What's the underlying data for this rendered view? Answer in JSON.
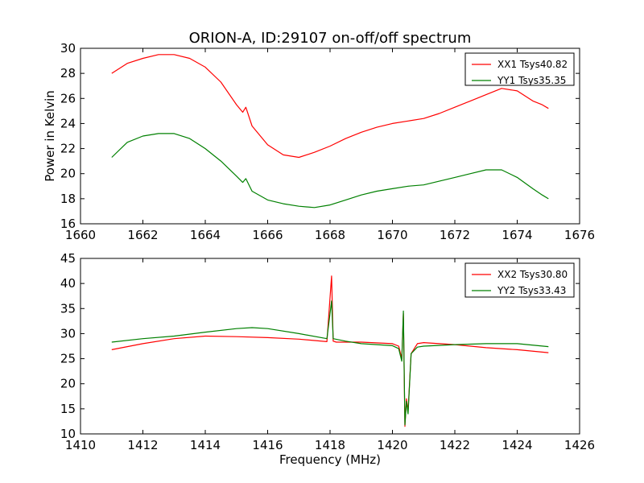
{
  "chart_data": [
    {
      "type": "line",
      "title": "ORION-A, ID:29107 on-off/off spectrum",
      "xlabel": "",
      "ylabel": "Power in Kelvin",
      "xlim": [
        1660,
        1676
      ],
      "ylim": [
        16,
        30
      ],
      "xticks": [
        1660,
        1662,
        1664,
        1666,
        1668,
        1670,
        1672,
        1674,
        1676
      ],
      "yticks": [
        16,
        18,
        20,
        22,
        24,
        26,
        28,
        30
      ],
      "grid": false,
      "legend": "top-right",
      "series": [
        {
          "name": "XX1 Tsys40.82",
          "color": "#ff0000",
          "x": [
            1661.0,
            1661.5,
            1662.0,
            1662.5,
            1663.0,
            1663.5,
            1664.0,
            1664.5,
            1665.0,
            1665.2,
            1665.3,
            1665.5,
            1666.0,
            1666.5,
            1667.0,
            1667.5,
            1668.0,
            1668.5,
            1669.0,
            1669.5,
            1670.0,
            1670.5,
            1671.0,
            1671.5,
            1672.0,
            1672.5,
            1673.0,
            1673.5,
            1674.0,
            1674.5,
            1674.8,
            1675.0
          ],
          "y": [
            28.0,
            28.8,
            29.2,
            29.5,
            29.5,
            29.2,
            28.5,
            27.3,
            25.5,
            24.9,
            25.3,
            23.8,
            22.3,
            21.5,
            21.3,
            21.7,
            22.2,
            22.8,
            23.3,
            23.7,
            24.0,
            24.2,
            24.4,
            24.8,
            25.3,
            25.8,
            26.3,
            26.8,
            26.6,
            25.8,
            25.5,
            25.2
          ]
        },
        {
          "name": "YY1 Tsys35.35",
          "color": "#008000",
          "x": [
            1661.0,
            1661.5,
            1662.0,
            1662.5,
            1663.0,
            1663.5,
            1664.0,
            1664.5,
            1665.0,
            1665.2,
            1665.3,
            1665.5,
            1666.0,
            1666.5,
            1667.0,
            1667.5,
            1668.0,
            1668.5,
            1669.0,
            1669.5,
            1670.0,
            1670.5,
            1671.0,
            1671.5,
            1672.0,
            1672.5,
            1673.0,
            1673.5,
            1674.0,
            1674.5,
            1674.8,
            1675.0
          ],
          "y": [
            21.3,
            22.5,
            23.0,
            23.2,
            23.2,
            22.8,
            22.0,
            21.0,
            19.8,
            19.3,
            19.6,
            18.6,
            17.9,
            17.6,
            17.4,
            17.3,
            17.5,
            17.9,
            18.3,
            18.6,
            18.8,
            19.0,
            19.1,
            19.4,
            19.7,
            20.0,
            20.3,
            20.3,
            19.7,
            18.8,
            18.3,
            18.0
          ]
        }
      ]
    },
    {
      "type": "line",
      "title": "",
      "xlabel": "Frequency (MHz)",
      "ylabel": "",
      "xlim": [
        1410,
        1426
      ],
      "ylim": [
        10,
        45
      ],
      "xticks": [
        1410,
        1412,
        1414,
        1416,
        1418,
        1420,
        1422,
        1424,
        1426
      ],
      "yticks": [
        10,
        15,
        20,
        25,
        30,
        35,
        40,
        45
      ],
      "grid": false,
      "legend": "top-right",
      "series": [
        {
          "name": "XX2 Tsys30.80",
          "color": "#ff0000",
          "x": [
            1411.0,
            1412.0,
            1413.0,
            1414.0,
            1415.0,
            1416.0,
            1417.0,
            1417.9,
            1418.05,
            1418.1,
            1418.2,
            1419.0,
            1420.0,
            1420.2,
            1420.3,
            1420.35,
            1420.4,
            1420.45,
            1420.5,
            1420.6,
            1420.8,
            1421.0,
            1422.0,
            1423.0,
            1424.0,
            1425.0
          ],
          "y": [
            26.8,
            28.0,
            29.0,
            29.5,
            29.4,
            29.2,
            28.9,
            28.4,
            41.5,
            28.5,
            28.3,
            28.3,
            28.0,
            27.5,
            25.0,
            34.0,
            11.5,
            17.0,
            14.5,
            26.0,
            28.0,
            28.2,
            27.8,
            27.2,
            26.8,
            26.2
          ]
        },
        {
          "name": "YY2 Tsys33.43",
          "color": "#008000",
          "x": [
            1411.0,
            1412.0,
            1413.0,
            1414.0,
            1415.0,
            1415.5,
            1416.0,
            1417.0,
            1417.9,
            1418.05,
            1418.1,
            1418.5,
            1419.0,
            1420.0,
            1420.2,
            1420.3,
            1420.35,
            1420.4,
            1420.45,
            1420.5,
            1420.6,
            1420.8,
            1421.0,
            1422.0,
            1423.0,
            1424.0,
            1425.0
          ],
          "y": [
            28.3,
            29.0,
            29.5,
            30.3,
            31.0,
            31.2,
            31.0,
            30.0,
            29.0,
            36.5,
            29.0,
            28.5,
            28.0,
            27.6,
            27.0,
            24.5,
            34.5,
            11.8,
            16.5,
            14.0,
            26.0,
            27.3,
            27.5,
            27.8,
            28.0,
            28.0,
            27.4
          ]
        }
      ]
    }
  ]
}
